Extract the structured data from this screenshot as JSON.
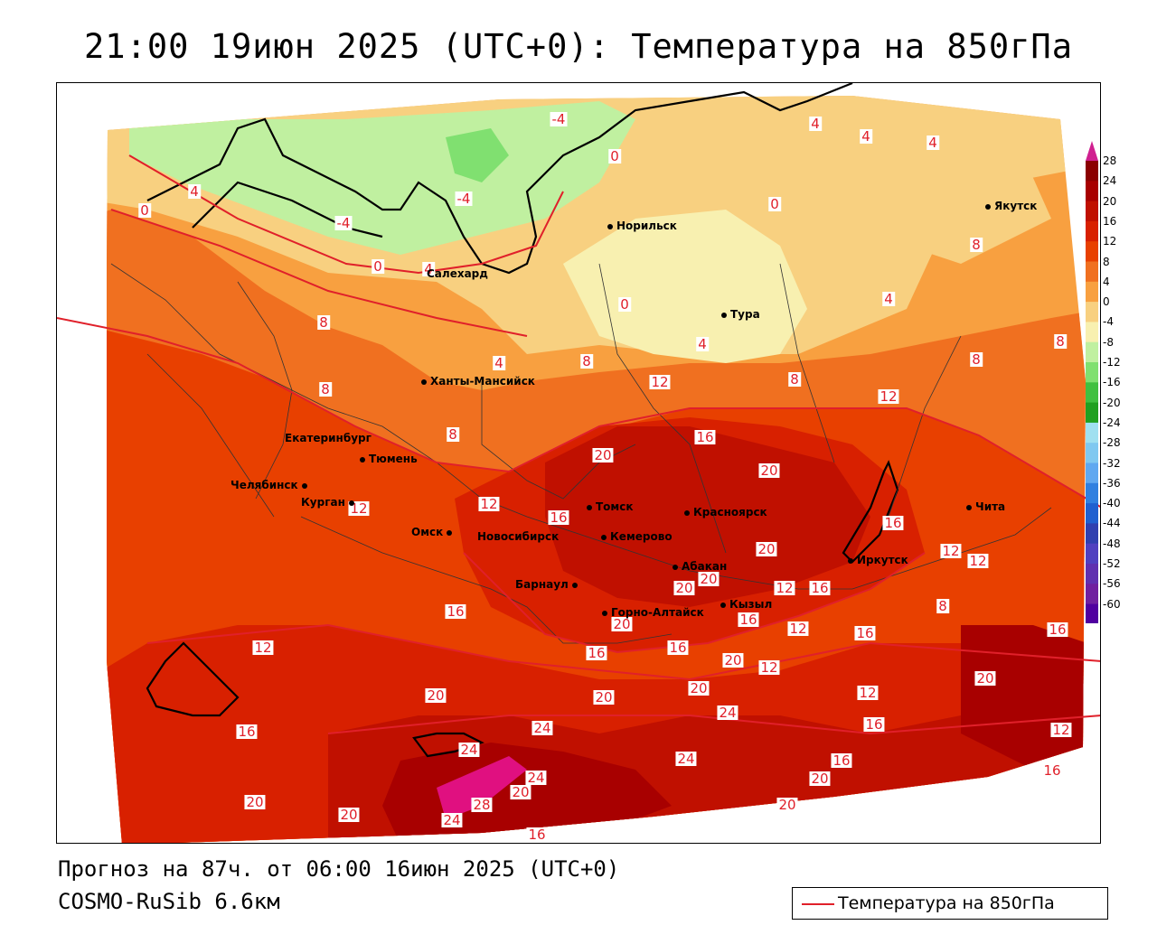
{
  "title": "21:00 19июн 2025 (UTC+0): Температура на 850гПа",
  "footer": {
    "forecast": "Прогноз на 87ч. от 06:00 16июн 2025 (UTC+0)",
    "model": "COSMO-RuSib 6.6км"
  },
  "legend": {
    "label": "Температура на 850гПа",
    "line_color": "#e0202a"
  },
  "colorbar": {
    "ticks": [
      "28",
      "24",
      "20",
      "16",
      "12",
      "8",
      "4",
      "0",
      "-4",
      "-8",
      "-12",
      "-16",
      "-20",
      "-24",
      "-28",
      "-32",
      "-36",
      "-40",
      "-44",
      "-48",
      "-52",
      "-56",
      "-60"
    ],
    "colors": [
      "#8b0000",
      "#a80000",
      "#c01000",
      "#d82000",
      "#e84000",
      "#f07020",
      "#f8a040",
      "#f8d080",
      "#f8f0b0",
      "#c0f0a0",
      "#80e070",
      "#40c040",
      "#20a020",
      "#a0e0f0",
      "#80c8f0",
      "#60a8f0",
      "#3080e0",
      "#2060d0",
      "#3040b0",
      "#5040c0",
      "#6030b0",
      "#7020a0",
      "#5000a0"
    ]
  },
  "cities": [
    {
      "name": "Якутск"
    },
    {
      "name": "Норильск"
    },
    {
      "name": "Салехард"
    },
    {
      "name": "Тура"
    },
    {
      "name": "Ханты-Мансийск"
    },
    {
      "name": "Екатеринбург"
    },
    {
      "name": "Тюмень"
    },
    {
      "name": "Челябинск"
    },
    {
      "name": "Курган"
    },
    {
      "name": "Омск"
    },
    {
      "name": "Томск"
    },
    {
      "name": "Новосибирск"
    },
    {
      "name": "Кемерово"
    },
    {
      "name": "Красноярск"
    },
    {
      "name": "Абакан"
    },
    {
      "name": "Барнаул"
    },
    {
      "name": "Кызыл"
    },
    {
      "name": "Горно-Алтайск"
    },
    {
      "name": "Иркутск"
    },
    {
      "name": "Чита"
    }
  ],
  "contour_labels": [
    "-4",
    "0",
    "4",
    "8",
    "12",
    "16",
    "20",
    "24",
    "28"
  ]
}
